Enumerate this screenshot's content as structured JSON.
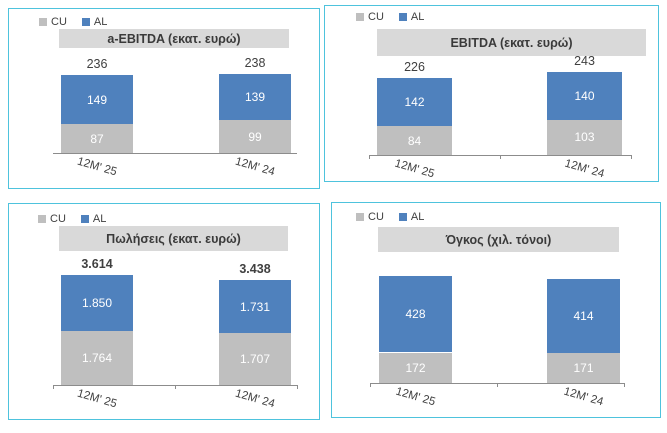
{
  "page": {
    "background": "#ffffff"
  },
  "colors": {
    "cu_series": "#bfbfbf",
    "al_series": "#4f81bd",
    "panel_border": "#4ec3dd",
    "title_band": "#d9d9d9",
    "axis_line": "#8c8c8c",
    "text": "#404040",
    "in_bar_label": "#ffffff"
  },
  "chart_data": [
    {
      "type": "bar",
      "stacked": true,
      "title": "a-EBITDA (εκατ. ευρώ)",
      "categories": [
        "12M' 25",
        "12M' 24"
      ],
      "series": [
        {
          "name": "CU",
          "color": "#bfbfbf",
          "values": [
            87,
            99
          ],
          "labels": [
            "87",
            "99"
          ]
        },
        {
          "name": "AL",
          "color": "#4f81bd",
          "values": [
            149,
            139
          ],
          "labels": [
            "149",
            "139"
          ]
        }
      ],
      "totals": [
        "236",
        "238"
      ],
      "legend_position": "top-left",
      "grid": false
    },
    {
      "type": "bar",
      "stacked": true,
      "title": "EBITDA (εκατ. ευρώ)",
      "categories": [
        "12M' 25",
        "12M' 24"
      ],
      "series": [
        {
          "name": "CU",
          "color": "#bfbfbf",
          "values": [
            84,
            103
          ],
          "labels": [
            "84",
            "103"
          ]
        },
        {
          "name": "AL",
          "color": "#4f81bd",
          "values": [
            142,
            140
          ],
          "labels": [
            "142",
            "140"
          ]
        }
      ],
      "totals": [
        "226",
        "243"
      ],
      "legend_position": "top-left",
      "grid": false
    },
    {
      "type": "bar",
      "stacked": true,
      "title": "Πωλήσεις (εκατ. ευρώ)",
      "categories": [
        "12M' 25",
        "12M' 24"
      ],
      "series": [
        {
          "name": "CU",
          "color": "#bfbfbf",
          "values": [
            1764,
            1707
          ],
          "labels": [
            "1.764",
            "1.707"
          ]
        },
        {
          "name": "AL",
          "color": "#4f81bd",
          "values": [
            1850,
            1731
          ],
          "labels": [
            "1.850",
            "1.731"
          ]
        }
      ],
      "totals": [
        "3.614",
        "3.438"
      ],
      "legend_position": "top-left",
      "grid": false
    },
    {
      "type": "bar",
      "stacked": true,
      "title": "Όγκος (χιλ. τόνοι)",
      "categories": [
        "12M' 25",
        "12M' 24"
      ],
      "series": [
        {
          "name": "CU",
          "color": "#bfbfbf",
          "values": [
            172,
            171
          ],
          "labels": [
            "172",
            "171"
          ]
        },
        {
          "name": "AL",
          "color": "#4f81bd",
          "values": [
            428,
            414
          ],
          "labels": [
            "428",
            "414"
          ]
        }
      ],
      "totals": null,
      "legend_position": "top-left",
      "grid": false
    }
  ]
}
